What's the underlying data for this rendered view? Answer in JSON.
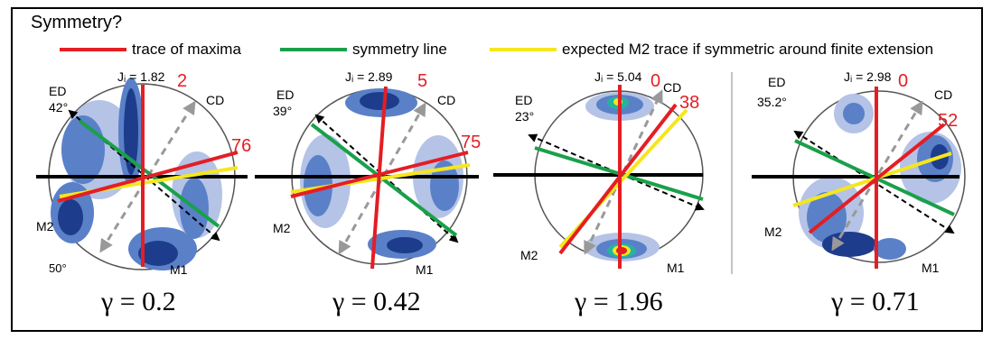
{
  "title": "Symmetry?",
  "legend": {
    "maxima": "trace of maxima",
    "symmetry": "symmetry line",
    "expected": "expected M2 trace if symmetric around finite extension"
  },
  "colors": {
    "maxima": "#e31e24",
    "symmetry": "#1aa04a",
    "expected": "#f5e61e",
    "contour_dark": "#1e3c8c",
    "contour_mid": "#5a80c8",
    "contour_light": "#b4c3e6"
  },
  "panels": [
    {
      "ji": "Jᵢ = 1.82",
      "angle_top": "2",
      "angle_right": "76",
      "ed": "ED",
      "ed_angle": "42°",
      "cd": "CD",
      "m1": "M1",
      "m2": "M2",
      "extra": "50°",
      "gamma": "γ = 0.2"
    },
    {
      "ji": "Jᵢ = 2.89",
      "angle_top": "5",
      "angle_right": "75",
      "ed": "ED",
      "ed_angle": "39°",
      "cd": "CD",
      "m1": "M1",
      "m2": "M2",
      "extra": "",
      "gamma": "γ = 0.42"
    },
    {
      "ji": "Jᵢ = 5.04",
      "angle_top": "0",
      "angle_right": "38",
      "ed": "ED",
      "ed_angle": "23°",
      "cd": "CD",
      "m1": "M1",
      "m2": "M2",
      "extra": "",
      "gamma": "γ = 1.96"
    },
    {
      "ji": "Jᵢ = 2.98",
      "angle_top": "0",
      "angle_right": "52",
      "ed": "ED",
      "ed_angle": "35.2°",
      "cd": "CD",
      "m1": "M1",
      "m2": "M2",
      "extra": "",
      "gamma": "γ = 0.71"
    }
  ]
}
